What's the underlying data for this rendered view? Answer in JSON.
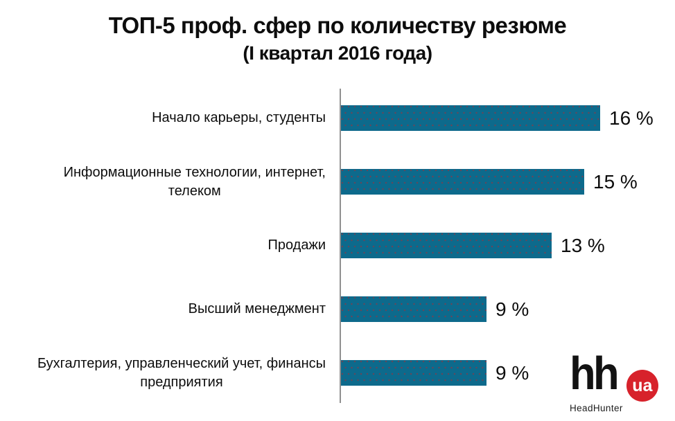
{
  "chart_data": {
    "type": "bar",
    "orientation": "horizontal",
    "title": "ТОП-5 проф. сфер по количеству резюме",
    "subtitle": "(I квартал 2016 года)",
    "categories": [
      "Начало карьеры, студенты",
      "Информационные технологии, интернет,\nтелеком",
      "Продажи",
      "Высший менеджмент",
      "Бухгалтерия, управленческий учет, финансы\nпредприятия"
    ],
    "values": [
      16,
      15,
      13,
      9,
      9
    ],
    "value_labels": [
      "16 %",
      "15 %",
      "13 %",
      "9 %",
      "9 %"
    ],
    "xlim": [
      0,
      16
    ],
    "grid": false,
    "legend": "none",
    "bar_color": "#0d6a8c",
    "bar_dot_color": "#7a3e4e",
    "axis_color": "#8f8f8f"
  },
  "logo": {
    "hh": "hh",
    "ua": "ua",
    "caption": "HeadHunter",
    "badge_color": "#d7222b"
  }
}
